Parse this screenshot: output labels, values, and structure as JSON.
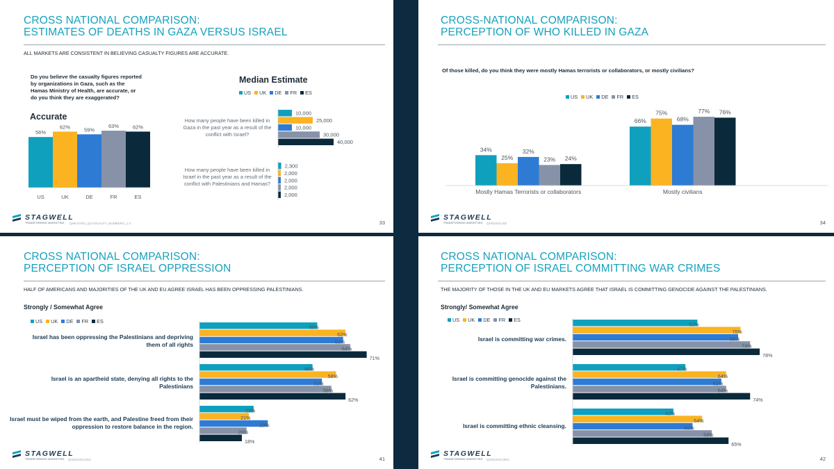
{
  "colors": {
    "US": "#0fa0bd",
    "UK": "#fbb322",
    "DE": "#2e7bd4",
    "FR": "#8792a8",
    "ES": "#0a2a3c",
    "accent": "#14a1bd"
  },
  "logo": {
    "text": "STAGWELL",
    "tagline": "TRANSFORMING MARKETING"
  },
  "slide1": {
    "title_line1": "CROSS NATIONAL COMPARISON:",
    "title_line2": "ESTIMATES OF DEATHS IN GAZA VERSUS ISRAEL",
    "subtitle": "ALL MARKETS ARE CONSISTENT IN BELIEVING CASUALTY FIGURES ARE ACCURATE.",
    "question": "Do you believe the casualty figures reported by organizations in Gaza, such as the Hamas Ministry of Health, are accurate, or do you think they are exaggerated?",
    "accurate_label": "Accurate",
    "median_label": "Median Estimate",
    "q_gaza": "How many people have been killed in Gaza in the past year as a result of the conflict with Israel?",
    "q_israel": "How many people have been killed in Israel in the past year as a result of the conflict with Palestinians and Hamas?",
    "footnote": "QH5-GHS1_QCASUALTY_NUMBERS_1-2",
    "page": "33"
  },
  "slide2": {
    "title_line1": "CROSS-NATIONAL COMPARISON:",
    "title_line2": "PERCEPTION OF WHO KILLED IN GAZA",
    "question": "Of those killed, do you think they were mostly Hamas terrorists or collaborators, or mostly civilians?",
    "footnote": "QHSGKILLED",
    "page": "34"
  },
  "slide3": {
    "title_line1": "CROSS NATIONAL COMPARISON:",
    "title_line2": "PERCEPTION OF ISRAEL OPPRESSION",
    "subtitle": "HALF OF AMERICANS AND MAJORITIES OF THE UK AND EU AGREE ISRAEL HAS BEEN OPPRESSING PALESTINIANS.",
    "section": "Strongly / Somewhat Agree",
    "footnote": "QHSGSOC1NG",
    "page": "41"
  },
  "slide4": {
    "title_line1": "CROSS NATIONAL COMPARISON:",
    "title_line2": "PERCEPTION OF ISRAEL COMMITTING WAR CRIMES",
    "subtitle": "THE MAJORITY OF THOSE IN THE UK AND EU MARKETS AGREE THAT ISRAEL IS COMMITTING GENOCIDE AGAINST THE PALESTINIANS.",
    "section": "Strongly/ Somewhat Agree",
    "footnote": "QHSGSOC3NG",
    "page": "42"
  },
  "chart_data": [
    {
      "id": "accurate",
      "type": "bar",
      "title": "Accurate",
      "categories": [
        "US",
        "UK",
        "DE",
        "FR",
        "ES"
      ],
      "values": [
        56,
        62,
        59,
        63,
        62
      ],
      "labels": [
        "56%",
        "62%",
        "59%",
        "63%",
        "62%"
      ],
      "ylim": [
        0,
        70
      ]
    },
    {
      "id": "median",
      "type": "bar",
      "orientation": "horizontal",
      "title": "Median Estimate",
      "legend": [
        "US",
        "UK",
        "DE",
        "FR",
        "ES"
      ],
      "groups": [
        {
          "label": "How many people have been killed in Gaza in the past year as a result of the conflict with Israel?",
          "values": [
            10000,
            25000,
            10000,
            30000,
            40000
          ],
          "labels": [
            "10,000",
            "25,000",
            "10,000",
            "30,000",
            "40,000"
          ]
        },
        {
          "label": "How many people have been killed in Israel in the past year as a result of the conflict with Palestinians and Hamas?",
          "values": [
            2300,
            2000,
            2000,
            2000,
            2000
          ],
          "labels": [
            "2,300",
            "2,000",
            "2,000",
            "2,000",
            "2,000"
          ]
        }
      ],
      "xlim": [
        0,
        40000
      ]
    },
    {
      "id": "killed",
      "type": "bar",
      "title": "Perception of who killed in Gaza",
      "legend": [
        "US",
        "UK",
        "DE",
        "FR",
        "ES"
      ],
      "categories": [
        "Mostly Hamas Terrorists or collaborators",
        "Mostly civilians"
      ],
      "series": [
        {
          "name": "US",
          "values": [
            34,
            66
          ],
          "labels": [
            "34%",
            "66%"
          ]
        },
        {
          "name": "UK",
          "values": [
            25,
            75
          ],
          "labels": [
            "25%",
            "75%"
          ]
        },
        {
          "name": "DE",
          "values": [
            32,
            68
          ],
          "labels": [
            "32%",
            "68%"
          ]
        },
        {
          "name": "FR",
          "values": [
            23,
            77
          ],
          "labels": [
            "23%",
            "77%"
          ]
        },
        {
          "name": "ES",
          "values": [
            24,
            76
          ],
          "labels": [
            "24%",
            "76%"
          ]
        }
      ],
      "ylim": [
        0,
        80
      ]
    },
    {
      "id": "oppression",
      "type": "bar",
      "orientation": "horizontal",
      "legend": [
        "US",
        "UK",
        "DE",
        "FR",
        "ES"
      ],
      "groups": [
        {
          "label": "Israel has been oppressing the Palestinians and depriving them of all rights",
          "values": [
            50,
            62,
            61,
            64,
            71
          ],
          "labels": [
            "50%",
            "62%",
            "61%",
            "64%",
            "71%"
          ]
        },
        {
          "label": "Israel is an apartheid state, denying all rights to the Palestinians",
          "values": [
            48,
            58,
            52,
            56,
            62
          ],
          "labels": [
            "48%",
            "58%",
            "52%",
            "56%",
            "62%"
          ]
        },
        {
          "label": "Israel must be wiped from the earth, and Palestine freed from their oppression to restore balance in the region.",
          "values": [
            23,
            21,
            29,
            20,
            18
          ],
          "labels": [
            "23%",
            "21%",
            "29%",
            "20%",
            "18%"
          ]
        }
      ],
      "xlim": [
        0,
        72
      ]
    },
    {
      "id": "warcrimes",
      "type": "bar",
      "orientation": "horizontal",
      "legend": [
        "US",
        "UK",
        "DE",
        "FR",
        "ES"
      ],
      "groups": [
        {
          "label": "Israel is committing war crimes.",
          "values": [
            52,
            70,
            69,
            74,
            78
          ],
          "labels": [
            "52%",
            "70%",
            "69%",
            "74%",
            "78%"
          ]
        },
        {
          "label": "Israel is committing genocide against the Palestinians.",
          "values": [
            47,
            64,
            62,
            64,
            74
          ],
          "labels": [
            "47%",
            "64%",
            "62%",
            "64%",
            "74%"
          ]
        },
        {
          "label": "Israel is committing ethnic cleansing.",
          "values": [
            42,
            54,
            50,
            58,
            65
          ],
          "labels": [
            "42%",
            "54%",
            "50%",
            "58%",
            "65%"
          ]
        }
      ],
      "xlim": [
        0,
        80
      ]
    }
  ]
}
